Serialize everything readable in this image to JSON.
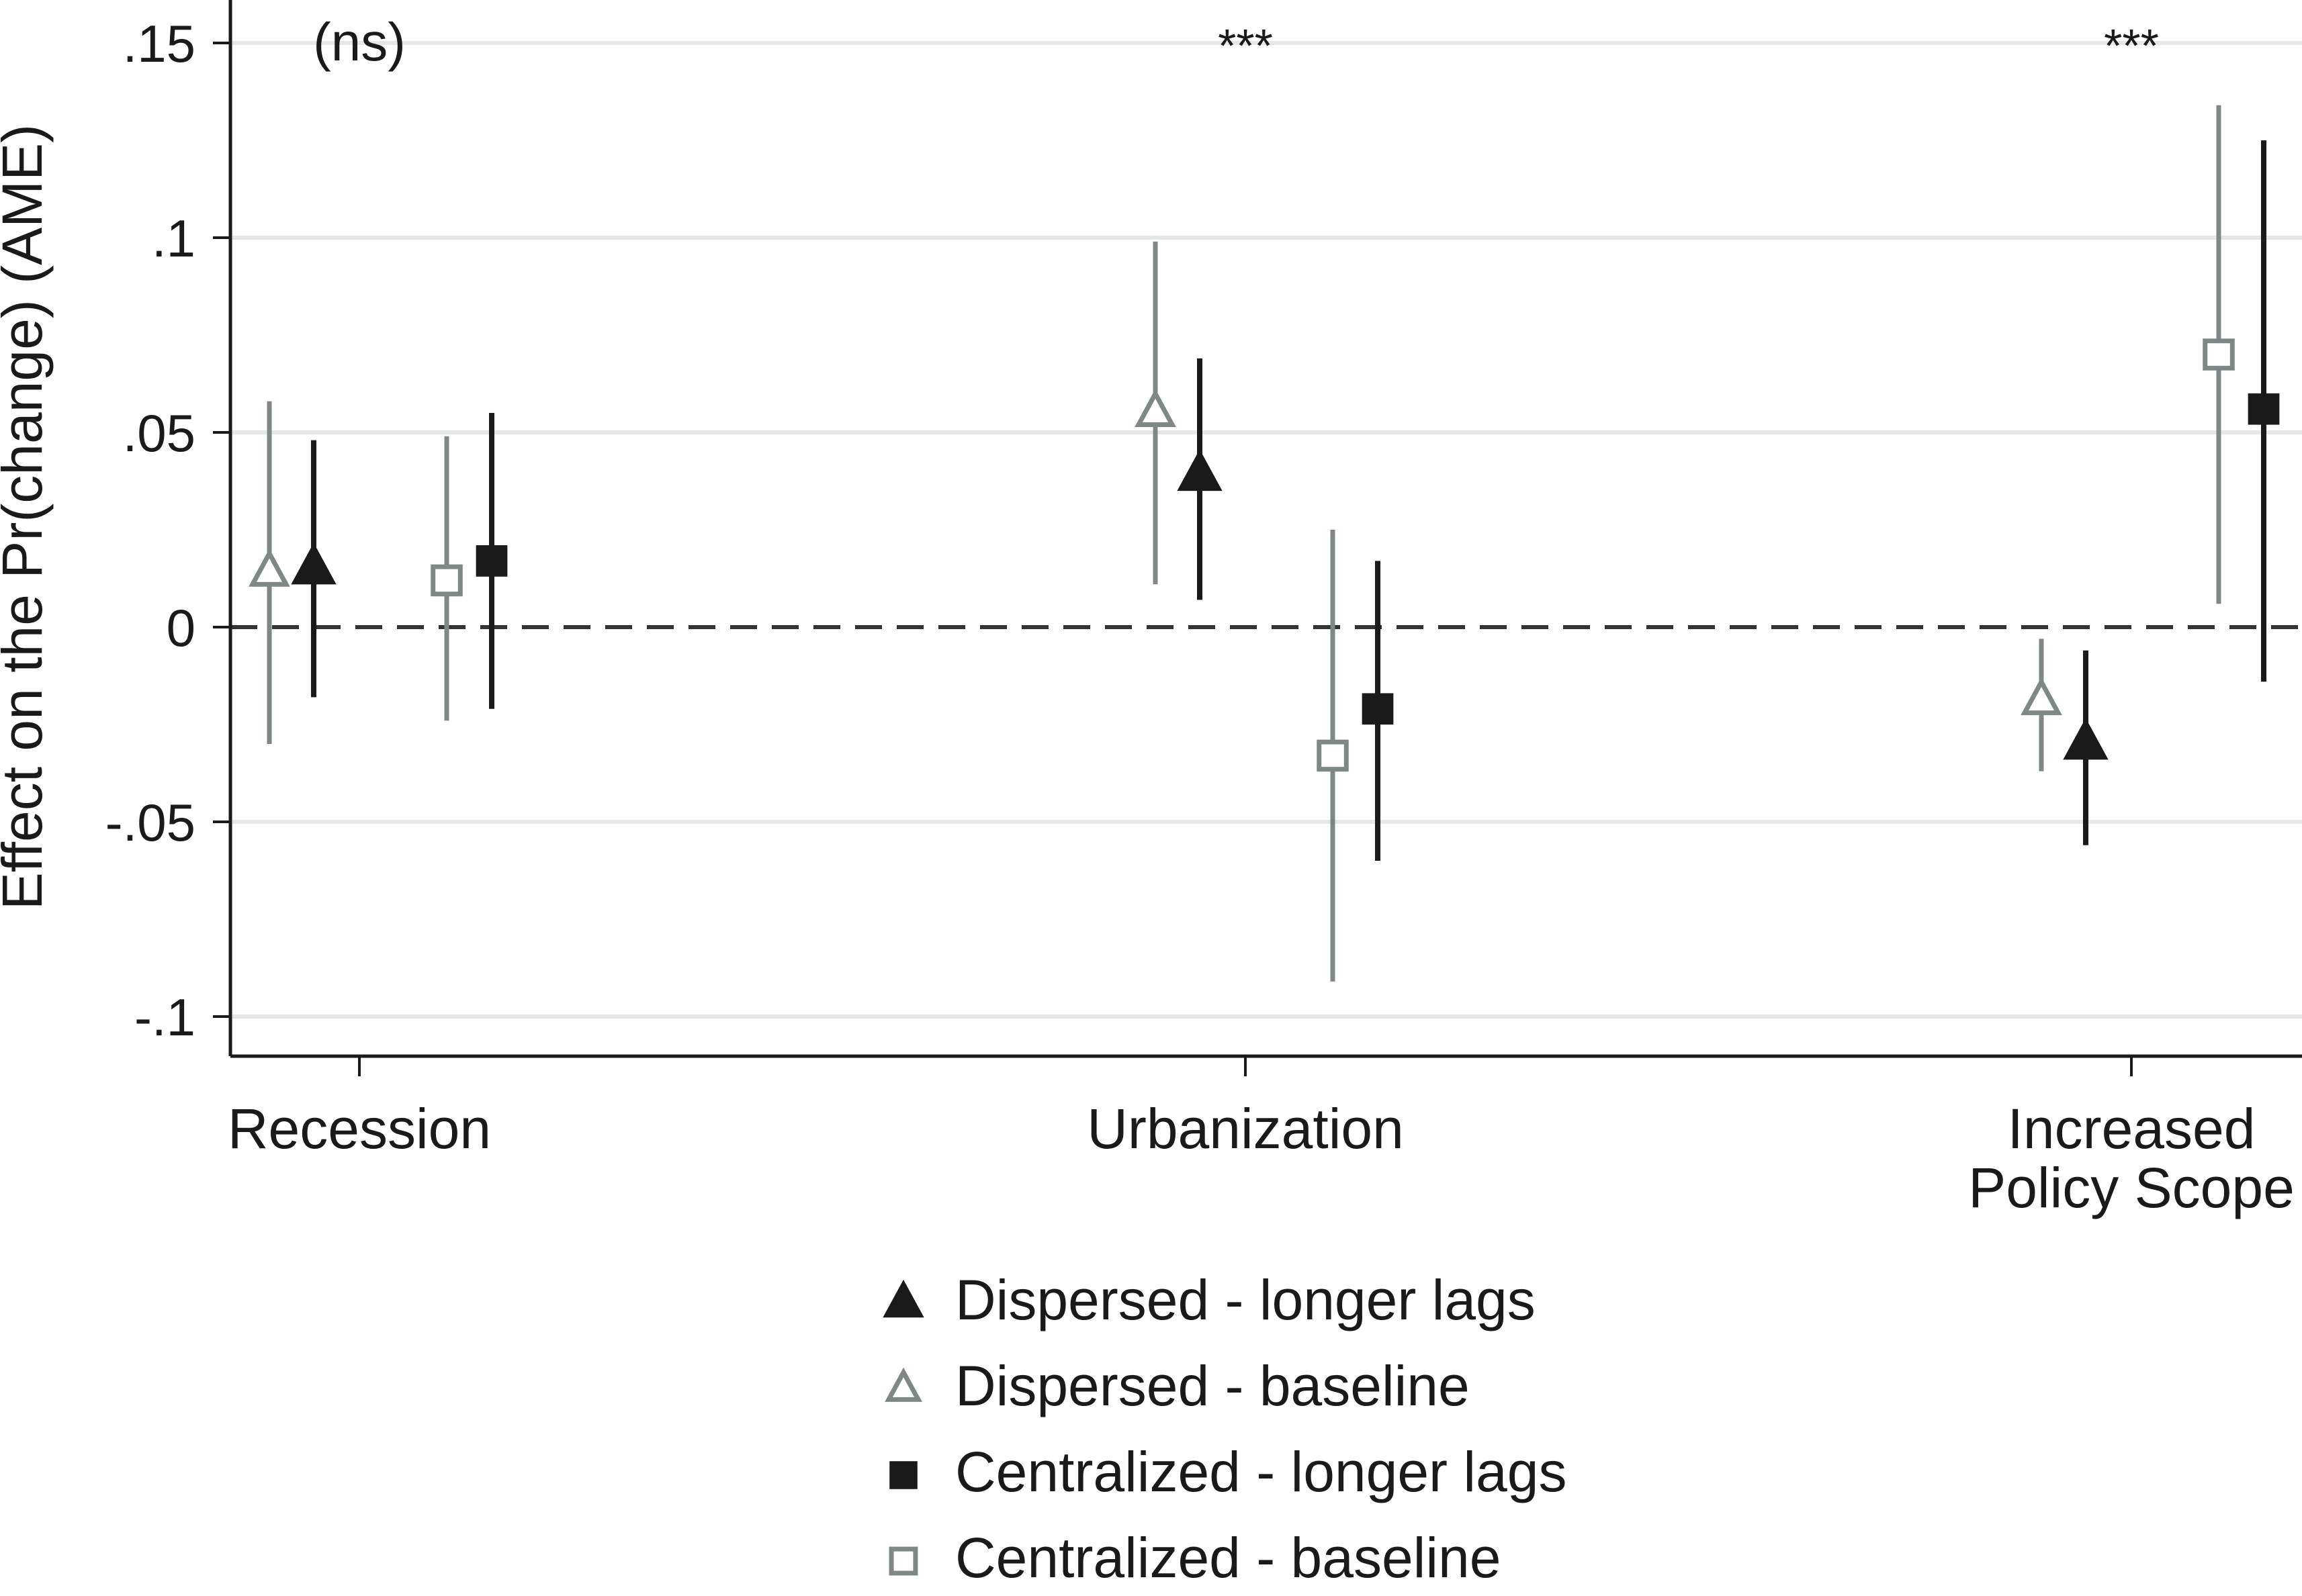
{
  "chart_data": {
    "type": "scatter",
    "ylabel": "Effect on the Pr(change) (AME)",
    "ylim": [
      -0.1,
      0.15
    ],
    "y_ticks": [
      -0.1,
      -0.05,
      0,
      0.05,
      0.1,
      0.15
    ],
    "y_tick_labels": [
      "-.1",
      "-.05",
      "0",
      ".05",
      ".1",
      ".15"
    ],
    "grid": true,
    "reference_line": 0,
    "categories": [
      {
        "lines": [
          "Recession"
        ],
        "significance": "(ns)"
      },
      {
        "lines": [
          "Urbanization"
        ],
        "significance": "***"
      },
      {
        "lines": [
          "Increased",
          "Policy Scope"
        ],
        "significance": "***"
      }
    ],
    "series": [
      {
        "name": "Dispersed - baseline",
        "marker": "triangle-hollow",
        "color": "#808787",
        "points": [
          {
            "value": 0.014,
            "lower": -0.03,
            "upper": 0.058
          },
          {
            "value": 0.055,
            "lower": 0.011,
            "upper": 0.099
          },
          {
            "value": -0.019,
            "lower": -0.037,
            "upper": -0.003
          }
        ]
      },
      {
        "name": "Dispersed - longer lags",
        "marker": "triangle-filled",
        "color": "#1a1a1a",
        "points": [
          {
            "value": 0.015,
            "lower": -0.018,
            "upper": 0.048
          },
          {
            "value": 0.039,
            "lower": 0.007,
            "upper": 0.069
          },
          {
            "value": -0.03,
            "lower": -0.056,
            "upper": -0.006
          }
        ]
      },
      {
        "name": "Centralized - baseline",
        "marker": "square-hollow",
        "color": "#808787",
        "points": [
          {
            "value": 0.012,
            "lower": -0.024,
            "upper": 0.049
          },
          {
            "value": -0.033,
            "lower": -0.091,
            "upper": 0.025
          },
          {
            "value": 0.07,
            "lower": 0.006,
            "upper": 0.134
          }
        ]
      },
      {
        "name": "Centralized - longer lags",
        "marker": "square-filled",
        "color": "#1a1a1a",
        "points": [
          {
            "value": 0.017,
            "lower": -0.021,
            "upper": 0.055
          },
          {
            "value": -0.021,
            "lower": -0.06,
            "upper": 0.017
          },
          {
            "value": 0.056,
            "lower": -0.014,
            "upper": 0.125
          }
        ]
      }
    ],
    "legend": {
      "placement": "bottom",
      "order": [
        1,
        0,
        3,
        2
      ]
    }
  }
}
